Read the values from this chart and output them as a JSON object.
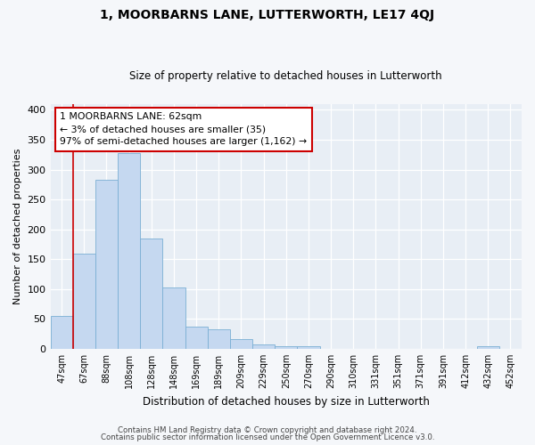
{
  "title": "1, MOORBARNS LANE, LUTTERWORTH, LE17 4QJ",
  "subtitle": "Size of property relative to detached houses in Lutterworth",
  "xlabel": "Distribution of detached houses by size in Lutterworth",
  "ylabel": "Number of detached properties",
  "bin_labels": [
    "47sqm",
    "67sqm",
    "88sqm",
    "108sqm",
    "128sqm",
    "148sqm",
    "169sqm",
    "189sqm",
    "209sqm",
    "229sqm",
    "250sqm",
    "270sqm",
    "290sqm",
    "310sqm",
    "331sqm",
    "351sqm",
    "371sqm",
    "391sqm",
    "412sqm",
    "432sqm",
    "452sqm"
  ],
  "bar_heights": [
    55,
    160,
    283,
    328,
    185,
    103,
    37,
    33,
    17,
    7,
    4,
    4,
    0,
    0,
    0,
    0,
    0,
    0,
    0,
    4,
    0
  ],
  "bar_color": "#c5d8f0",
  "bar_edge_color": "#7aafd4",
  "highlight_line_color": "#cc0000",
  "annotation_text_line1": "1 MOORBARNS LANE: 62sqm",
  "annotation_text_line2": "← 3% of detached houses are smaller (35)",
  "annotation_text_line3": "97% of semi-detached houses are larger (1,162) →",
  "annotation_box_color": "#ffffff",
  "annotation_box_edge_color": "#cc0000",
  "ylim": [
    0,
    410
  ],
  "yticks": [
    0,
    50,
    100,
    150,
    200,
    250,
    300,
    350,
    400
  ],
  "plot_bg_color": "#e8eef5",
  "fig_bg_color": "#f5f7fa",
  "grid_color": "#ffffff",
  "footer_line1": "Contains HM Land Registry data © Crown copyright and database right 2024.",
  "footer_line2": "Contains public sector information licensed under the Open Government Licence v3.0."
}
